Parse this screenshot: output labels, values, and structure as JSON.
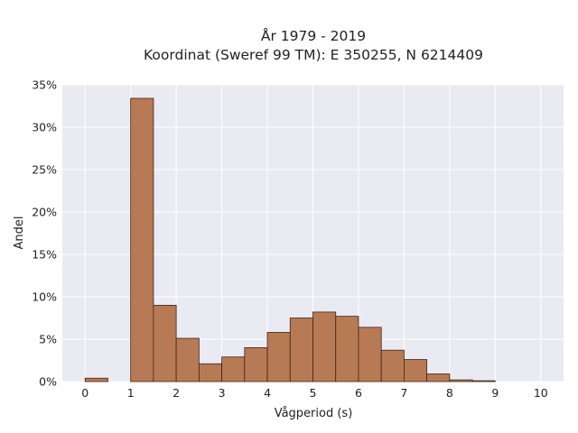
{
  "chart_data": {
    "type": "bar",
    "title_lines": [
      "År 1979 - 2019",
      "Koordinat (Sweref 99 TM): E 350255, N 6214409"
    ],
    "xlabel": "Vågperiod (s)",
    "ylabel": "Andel",
    "xlim": [
      -0.5,
      10.5
    ],
    "ylim": [
      0,
      0.35
    ],
    "grid": true,
    "bin_width": 0.5,
    "x_ticks": [
      0,
      1,
      2,
      3,
      4,
      5,
      6,
      7,
      8,
      9,
      10
    ],
    "y_ticks": [
      0,
      0.05,
      0.1,
      0.15,
      0.2,
      0.25,
      0.3,
      0.35
    ],
    "y_tick_labels": [
      "0%",
      "5%",
      "10%",
      "15%",
      "20%",
      "25%",
      "30%",
      "35%"
    ],
    "bins": [
      {
        "start": 0.0,
        "value": 0.004
      },
      {
        "start": 0.5,
        "value": 0.0
      },
      {
        "start": 1.0,
        "value": 0.334
      },
      {
        "start": 1.5,
        "value": 0.09
      },
      {
        "start": 2.0,
        "value": 0.051
      },
      {
        "start": 2.5,
        "value": 0.021
      },
      {
        "start": 3.0,
        "value": 0.029
      },
      {
        "start": 3.5,
        "value": 0.04
      },
      {
        "start": 4.0,
        "value": 0.058
      },
      {
        "start": 4.5,
        "value": 0.075
      },
      {
        "start": 5.0,
        "value": 0.082
      },
      {
        "start": 5.5,
        "value": 0.077
      },
      {
        "start": 6.0,
        "value": 0.064
      },
      {
        "start": 6.5,
        "value": 0.037
      },
      {
        "start": 7.0,
        "value": 0.026
      },
      {
        "start": 7.5,
        "value": 0.009
      },
      {
        "start": 8.0,
        "value": 0.002
      },
      {
        "start": 8.5,
        "value": 0.001
      }
    ],
    "bar_color": "#b87a55",
    "bar_edge_color": "#3b2618",
    "plot_background": "#eaeaf2",
    "grid_color": "#ffffff"
  }
}
